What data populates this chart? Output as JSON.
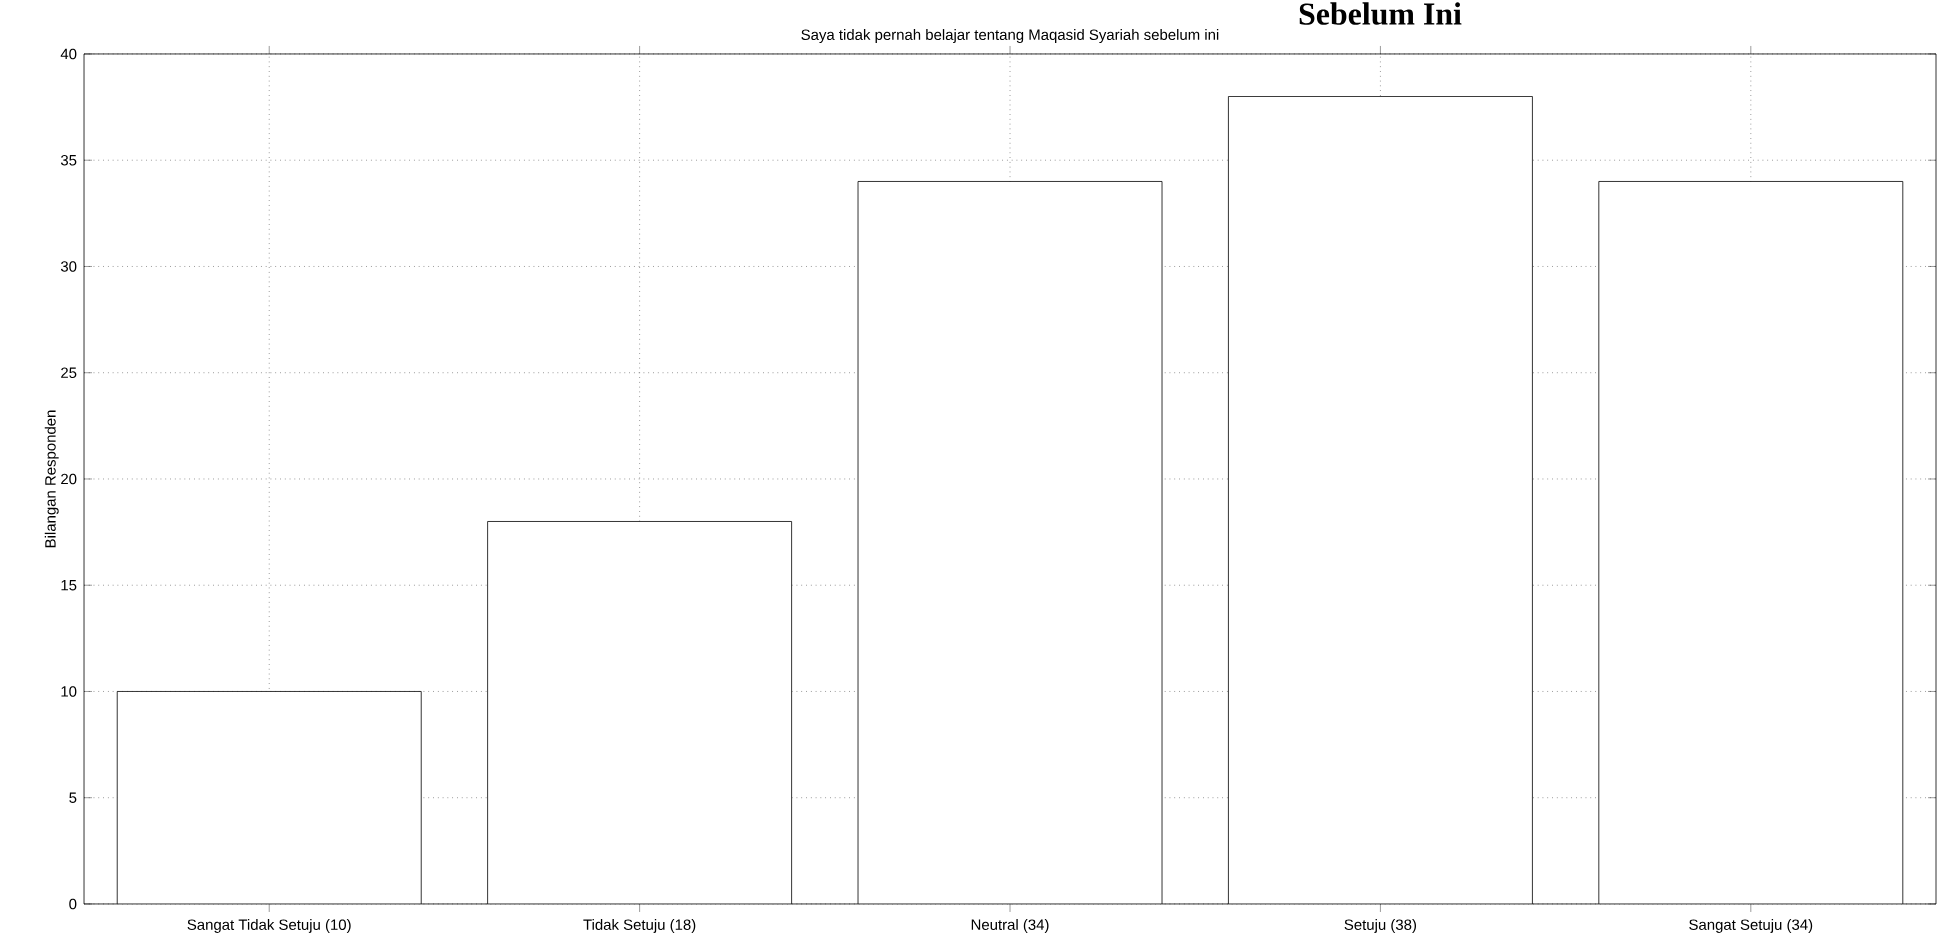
{
  "chart_data": {
    "type": "bar",
    "title": "Saya tidak pernah belajar tentang Maqasid Syariah sebelum ini",
    "ylabel": "Bilangan Responden",
    "annotations": [
      "Sebelum Ini"
    ],
    "categories": [
      "Sangat Tidak Setuju (10)",
      "Tidak Setuju (18)",
      "Neutral (34)",
      "Setuju (38)",
      "Sangat Setuju (34)"
    ],
    "values": [
      10,
      18,
      34,
      38,
      34
    ],
    "color": "#ffffff",
    "ylim": [
      0,
      40
    ],
    "yticks": [
      0,
      5,
      10,
      15,
      20,
      25,
      30,
      35,
      40
    ],
    "grid": true
  }
}
